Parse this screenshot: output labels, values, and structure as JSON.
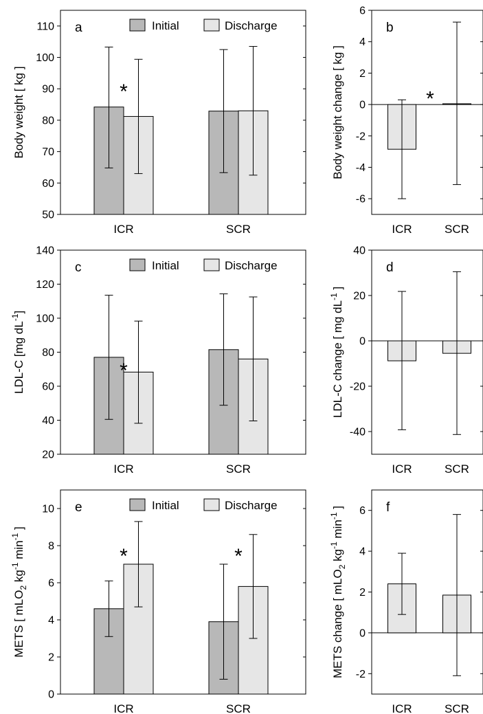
{
  "colors": {
    "initial": "#b8b8b8",
    "discharge": "#e6e6e6",
    "change": "#e6e6e6",
    "outline": "#000000"
  },
  "chart_data": [
    {
      "id": "a",
      "panel_label": "a",
      "type": "bar",
      "categories": [
        "ICR",
        "SCR"
      ],
      "series": [
        {
          "name": "Initial",
          "values": [
            84.2,
            82.9
          ],
          "err_low": [
            64.8,
            63.3
          ],
          "err_high": [
            103.3,
            102.5
          ]
        },
        {
          "name": "Discharge",
          "values": [
            81.2,
            83.0
          ],
          "err_low": [
            63.0,
            62.5
          ],
          "err_high": [
            99.4,
            103.5
          ]
        }
      ],
      "ylabel": "Body weight  [ kg ]",
      "ylim": [
        50,
        115
      ],
      "yticks": [
        50,
        60,
        70,
        80,
        90,
        100,
        110
      ],
      "significance": [
        {
          "category": "ICR",
          "label": "*",
          "y": 90
        }
      ],
      "legend": "top"
    },
    {
      "id": "b",
      "panel_label": "b",
      "type": "bar",
      "categories": [
        "ICR",
        "SCR"
      ],
      "series": [
        {
          "values": [
            -2.85,
            0.05
          ],
          "err_low": [
            -6.0,
            -5.1
          ],
          "err_high": [
            0.3,
            5.25
          ]
        }
      ],
      "ylabel": "Body weight change  [ kg ]",
      "ylim": [
        -7,
        6
      ],
      "yticks": [
        -6,
        -4,
        -2,
        0,
        2,
        4,
        6
      ],
      "significance": [
        {
          "between": true,
          "label": "*",
          "y": 0.55
        }
      ]
    },
    {
      "id": "c",
      "panel_label": "c",
      "type": "bar",
      "categories": [
        "ICR",
        "SCR"
      ],
      "series": [
        {
          "name": "Initial",
          "values": [
            77.0,
            81.5
          ],
          "err_low": [
            40.5,
            48.8
          ],
          "err_high": [
            113.5,
            114.3
          ]
        },
        {
          "name": "Discharge",
          "values": [
            68.3,
            76.0
          ],
          "err_low": [
            38.2,
            39.6
          ],
          "err_high": [
            98.3,
            112.5
          ]
        }
      ],
      "ylabel": "LDL-C  [mg dL⁻¹]",
      "ylim": [
        20,
        140
      ],
      "yticks": [
        20,
        40,
        60,
        80,
        100,
        120,
        140
      ],
      "significance": [
        {
          "category": "ICR",
          "label": "*",
          "y": 71
        }
      ],
      "legend": "top"
    },
    {
      "id": "d",
      "panel_label": "d",
      "type": "bar",
      "categories": [
        "ICR",
        "SCR"
      ],
      "series": [
        {
          "values": [
            -8.8,
            -5.5
          ],
          "err_low": [
            -39.2,
            -41.3
          ],
          "err_high": [
            21.8,
            30.5
          ]
        }
      ],
      "ylabel": "LDL-C change  [ mg dL⁻¹ ]",
      "ylim": [
        -50,
        40
      ],
      "yticks": [
        -40,
        -20,
        0,
        20,
        40
      ]
    },
    {
      "id": "e",
      "panel_label": "e",
      "type": "bar",
      "categories": [
        "ICR",
        "SCR"
      ],
      "series": [
        {
          "name": "Initial",
          "values": [
            4.6,
            3.9
          ],
          "err_low": [
            3.1,
            0.8
          ],
          "err_high": [
            6.1,
            7.0
          ]
        },
        {
          "name": "Discharge",
          "values": [
            7.0,
            5.8
          ],
          "err_low": [
            4.7,
            3.0
          ],
          "err_high": [
            9.3,
            8.6
          ]
        }
      ],
      "ylabel": "METS  [ mLO₂ kg⁻¹ min⁻¹ ]",
      "ylim": [
        0,
        11
      ],
      "yticks": [
        0,
        2,
        4,
        6,
        8,
        10
      ],
      "significance": [
        {
          "category": "ICR",
          "label": "*",
          "y": 7.6
        },
        {
          "category": "SCR",
          "label": "*",
          "y": 7.6
        }
      ],
      "legend": "top"
    },
    {
      "id": "f",
      "panel_label": "f",
      "type": "bar",
      "categories": [
        "ICR",
        "SCR"
      ],
      "series": [
        {
          "values": [
            2.4,
            1.85
          ],
          "err_low": [
            0.9,
            -2.1
          ],
          "err_high": [
            3.9,
            5.8
          ]
        }
      ],
      "ylabel": "METS change  [ mLO₂ kg⁻¹ min⁻¹ ]",
      "ylim": [
        -3,
        7
      ],
      "yticks": [
        -2,
        0,
        2,
        4,
        6
      ]
    }
  ]
}
